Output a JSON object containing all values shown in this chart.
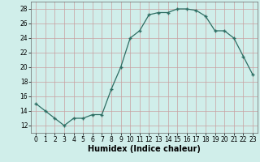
{
  "x": [
    0,
    1,
    2,
    3,
    4,
    5,
    6,
    7,
    8,
    9,
    10,
    11,
    12,
    13,
    14,
    15,
    16,
    17,
    18,
    19,
    20,
    21,
    22,
    23
  ],
  "y": [
    15,
    14,
    13,
    12,
    13,
    13,
    13.5,
    13.5,
    17,
    20,
    24,
    25,
    27.2,
    27.5,
    27.5,
    28,
    28,
    27.8,
    27,
    25,
    25,
    24,
    21.5,
    19
  ],
  "xlabel": "Humidex (Indice chaleur)",
  "xlim": [
    -0.5,
    23.5
  ],
  "ylim": [
    11,
    29
  ],
  "yticks": [
    12,
    14,
    16,
    18,
    20,
    22,
    24,
    26,
    28
  ],
  "xtick_labels": [
    "0",
    "1",
    "2",
    "3",
    "4",
    "5",
    "6",
    "7",
    "8",
    "9",
    "10",
    "11",
    "12",
    "13",
    "14",
    "15",
    "16",
    "17",
    "18",
    "19",
    "20",
    "21",
    "22",
    "23"
  ],
  "line_color": "#2d6e63",
  "bg_color": "#d0eeea",
  "grid_color_major": "#c8a0a0",
  "grid_color_minor": "#c8a0a0",
  "label_fontsize": 7,
  "tick_fontsize": 5.5
}
